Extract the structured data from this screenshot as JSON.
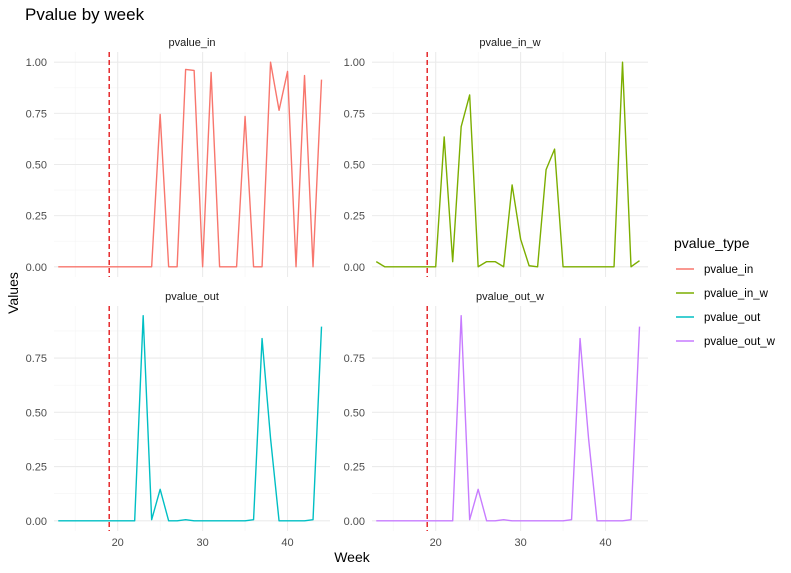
{
  "chart_data": {
    "type": "line",
    "title": "Pvalue by week",
    "xlabel": "Week",
    "ylabel": "Values",
    "legend": {
      "title": "pvalue_type",
      "placement": "right"
    },
    "vline": {
      "x": 19,
      "color": "#e31a1c",
      "style": "dashed"
    },
    "grid": true,
    "xlim": [
      12.5,
      45
    ],
    "x_ticks": [
      20,
      30,
      40
    ],
    "x_tick_labels": [
      "20",
      "30",
      "40"
    ],
    "facets": [
      {
        "strip": "pvalue_in",
        "series": "pvalue_in",
        "color": "#F8766D",
        "ylim": [
          -0.05,
          1.05
        ],
        "y_ticks": [
          0,
          0.25,
          0.5,
          0.75,
          1.0
        ],
        "y_tick_labels": [
          "0.00",
          "0.25",
          "0.50",
          "0.75",
          "1.00"
        ],
        "x": [
          13,
          14,
          15,
          16,
          17,
          18,
          19,
          20,
          21,
          22,
          23,
          24,
          25,
          26,
          27,
          28,
          29,
          30,
          31,
          32,
          33,
          34,
          35,
          36,
          37,
          38,
          39,
          40,
          41,
          42,
          43,
          44
        ],
        "values": [
          0,
          0,
          0,
          0,
          0,
          0,
          0,
          0,
          0,
          0,
          0,
          0,
          0.745,
          0,
          0,
          0.965,
          0.96,
          0,
          0.95,
          0,
          0,
          0,
          0.735,
          0,
          0,
          1.0,
          0.765,
          0.955,
          0,
          0.935,
          0,
          0.915
        ]
      },
      {
        "strip": "pvalue_in_w",
        "series": "pvalue_in_w",
        "color": "#7CAE00",
        "ylim": [
          -0.05,
          1.05
        ],
        "y_ticks": [
          0,
          0.25,
          0.5,
          0.75,
          1.0
        ],
        "y_tick_labels": [
          "0.00",
          "0.25",
          "0.50",
          "0.75",
          "1.00"
        ],
        "x": [
          13,
          14,
          15,
          16,
          17,
          18,
          19,
          20,
          21,
          22,
          23,
          24,
          25,
          26,
          27,
          28,
          29,
          30,
          31,
          32,
          33,
          34,
          35,
          36,
          37,
          38,
          39,
          40,
          41,
          42,
          43,
          44
        ],
        "values": [
          0.025,
          0,
          0,
          0,
          0,
          0,
          0,
          0,
          0.635,
          0.025,
          0.685,
          0.84,
          0,
          0.025,
          0.025,
          0,
          0.4,
          0.135,
          0.005,
          0,
          0.475,
          0.575,
          0,
          0,
          0,
          0,
          0,
          0,
          0,
          1.0,
          0,
          0.03
        ]
      },
      {
        "strip": "pvalue_out",
        "series": "pvalue_out",
        "color": "#00BFC4",
        "ylim": [
          -0.047,
          0.99
        ],
        "y_ticks": [
          0,
          0.25,
          0.5,
          0.75
        ],
        "y_tick_labels": [
          "0.00",
          "0.25",
          "0.50",
          "0.75"
        ],
        "x": [
          13,
          14,
          15,
          16,
          17,
          18,
          19,
          20,
          21,
          22,
          23,
          24,
          25,
          26,
          27,
          28,
          29,
          30,
          31,
          32,
          33,
          34,
          35,
          36,
          37,
          38,
          39,
          40,
          41,
          42,
          43,
          44
        ],
        "values": [
          0,
          0,
          0,
          0,
          0,
          0,
          0,
          0,
          0,
          0,
          0.945,
          0.005,
          0.145,
          0,
          0,
          0.005,
          0,
          0,
          0,
          0,
          0,
          0,
          0,
          0.005,
          0.84,
          0.38,
          0,
          0,
          0,
          0,
          0.005,
          0.895
        ]
      },
      {
        "strip": "pvalue_out_w",
        "series": "pvalue_out_w",
        "color": "#C77CFF",
        "ylim": [
          -0.047,
          0.99
        ],
        "y_ticks": [
          0,
          0.25,
          0.5,
          0.75
        ],
        "y_tick_labels": [
          "0.00",
          "0.25",
          "0.50",
          "0.75"
        ],
        "x": [
          13,
          14,
          15,
          16,
          17,
          18,
          19,
          20,
          21,
          22,
          23,
          24,
          25,
          26,
          27,
          28,
          29,
          30,
          31,
          32,
          33,
          34,
          35,
          36,
          37,
          38,
          39,
          40,
          41,
          42,
          43,
          44
        ],
        "values": [
          0,
          0,
          0,
          0,
          0,
          0,
          0,
          0,
          0,
          0,
          0.945,
          0.005,
          0.145,
          0,
          0,
          0.005,
          0,
          0,
          0,
          0,
          0,
          0,
          0,
          0.005,
          0.84,
          0.38,
          0,
          0,
          0,
          0,
          0.005,
          0.895
        ]
      }
    ],
    "legend_entries": [
      {
        "label": "pvalue_in",
        "color": "#F8766D"
      },
      {
        "label": "pvalue_in_w",
        "color": "#7CAE00"
      },
      {
        "label": "pvalue_out",
        "color": "#00BFC4"
      },
      {
        "label": "pvalue_out_w",
        "color": "#C77CFF"
      }
    ]
  }
}
